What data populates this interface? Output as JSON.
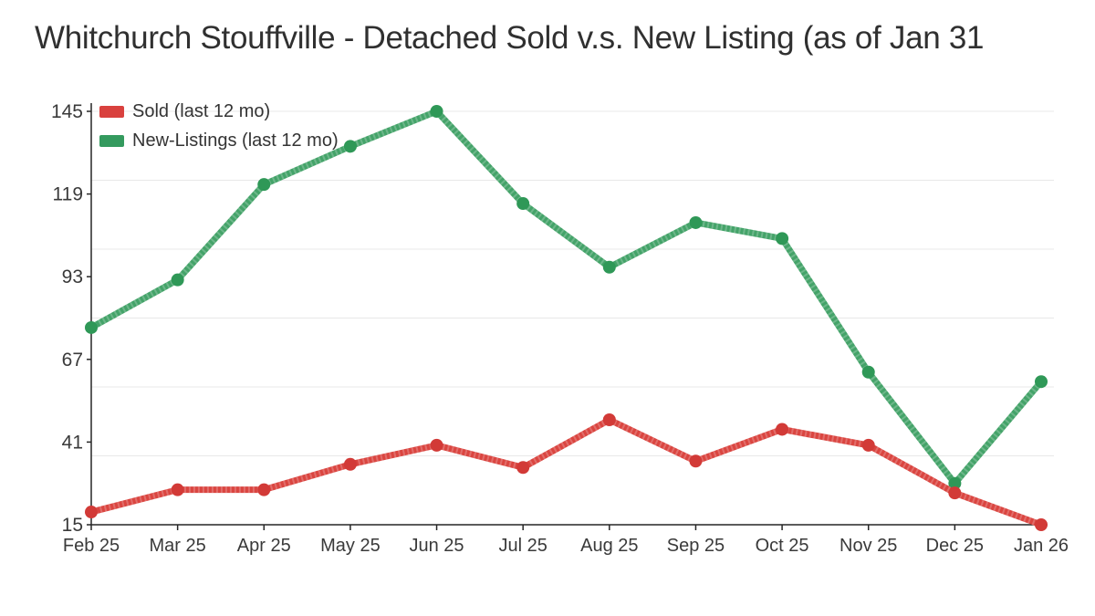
{
  "title": "Whitchurch Stouffville - Detached Sold v.s. New Listing (as of Jan 31",
  "legend": {
    "items": [
      {
        "label": "Sold (last 12 mo)",
        "color": "#d9413e"
      },
      {
        "label": "New-Listings (last 12 mo)",
        "color": "#349a5e"
      }
    ]
  },
  "chart_data": {
    "type": "line",
    "title": "Whitchurch Stouffville - Detached Sold v.s. New Listing (as of Jan 31",
    "categories": [
      "Feb 25",
      "Mar 25",
      "Apr 25",
      "May 25",
      "Jun 25",
      "Jul 25",
      "Aug 25",
      "Sep 25",
      "Oct 25",
      "Nov 25",
      "Dec 25",
      "Jan 26"
    ],
    "series": [
      {
        "name": "Sold (last 12 mo)",
        "color": "#da4540",
        "marker_color": "#d23a37",
        "values": [
          19,
          26,
          26,
          34,
          40,
          33,
          48,
          35,
          45,
          40,
          25,
          15
        ]
      },
      {
        "name": "New-Listings (last 12 mo)",
        "color": "#44a369",
        "marker_color": "#2f9857",
        "values": [
          77,
          92,
          122,
          134,
          145,
          116,
          96,
          110,
          105,
          63,
          28,
          60
        ]
      }
    ],
    "xlabel": "",
    "ylabel": "",
    "ylim": [
      15,
      145
    ],
    "yticks": [
      15,
      41,
      67,
      93,
      119,
      145
    ],
    "grid": "horizontal only, 6 equal divisions",
    "legend_position": "top-left inside plot",
    "axis_color": "#262626",
    "grid_color": "#e8e8e8",
    "label_color": "#3a3a3a"
  }
}
